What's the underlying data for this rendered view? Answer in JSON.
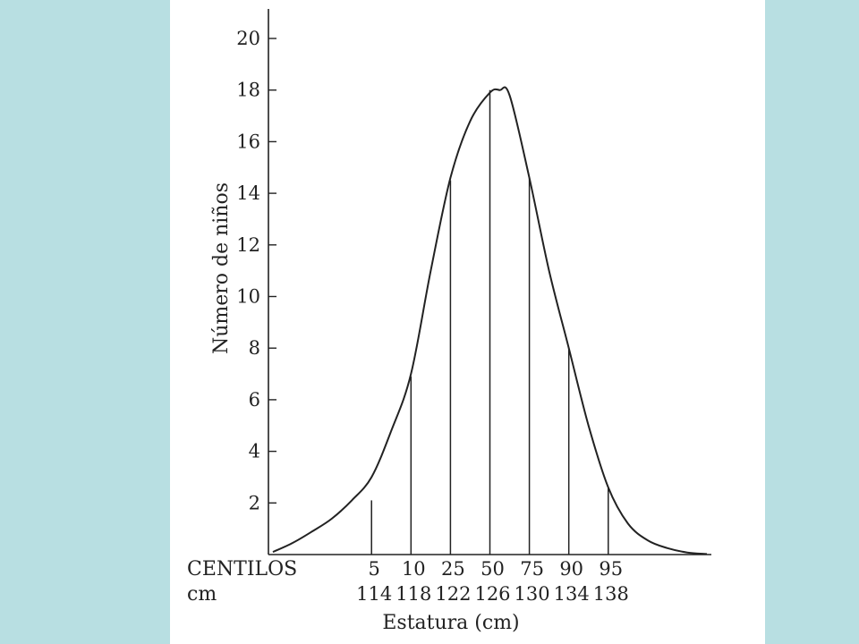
{
  "colors": {
    "background": "#b8dfe2",
    "paper": "#ffffff",
    "ink": "#222222"
  },
  "chart_data": {
    "type": "area",
    "title": "",
    "xlabel": "Estatura (cm)",
    "ylabel": "Número de niños",
    "xlim": [
      104,
      148
    ],
    "ylim": [
      0,
      21
    ],
    "yticks": [
      2,
      4,
      6,
      8,
      10,
      12,
      14,
      16,
      18,
      20
    ],
    "grid": false,
    "curve": {
      "x": [
        104,
        106,
        108,
        110,
        112,
        114,
        116,
        118,
        120,
        122,
        124,
        126,
        127,
        128,
        130,
        132,
        134,
        136,
        138,
        140,
        142,
        144,
        146,
        148
      ],
      "y": [
        0.1,
        0.45,
        0.9,
        1.4,
        2.1,
        3.0,
        4.8,
        7.0,
        11.0,
        14.6,
        16.8,
        17.9,
        18.0,
        17.8,
        14.6,
        11.0,
        8.0,
        5.0,
        2.6,
        1.2,
        0.55,
        0.25,
        0.08,
        0.02
      ]
    },
    "centile_row_label": "CENTILOS",
    "cm_row_label": "cm",
    "centiles": [
      {
        "centile": "5",
        "cm": "114",
        "x": 114,
        "height": 2.1
      },
      {
        "centile": "10",
        "cm": "118",
        "x": 118,
        "height": 6.9
      },
      {
        "centile": "25",
        "cm": "122",
        "x": 122,
        "height": 14.5
      },
      {
        "centile": "50",
        "cm": "126",
        "x": 126,
        "height": 18.0
      },
      {
        "centile": "75",
        "cm": "130",
        "x": 130,
        "height": 14.6
      },
      {
        "centile": "90",
        "cm": "134",
        "x": 134,
        "height": 8.0
      },
      {
        "centile": "95",
        "cm": "138",
        "x": 138,
        "height": 2.6
      }
    ]
  }
}
